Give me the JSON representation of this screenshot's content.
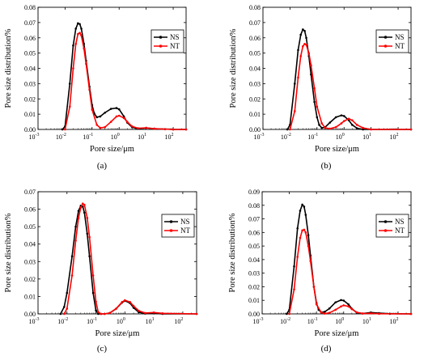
{
  "chart_data": [
    {
      "type": "line",
      "panel_label": "(a)",
      "xlabel": "Pore size/μm",
      "ylabel": "Pore size distribution%",
      "x_scale": "log",
      "xlim": [
        0.001,
        300
      ],
      "x_ticks": [
        {
          "base": "10",
          "exp": "-3"
        },
        {
          "base": "10",
          "exp": "-2"
        },
        {
          "base": "10",
          "exp": "-1"
        },
        {
          "base": "10",
          "exp": "0"
        },
        {
          "base": "10",
          "exp": "1"
        },
        {
          "base": "10",
          "exp": "2"
        }
      ],
      "ylim": [
        0,
        0.08
      ],
      "y_ticks": [
        "0.00",
        "0.01",
        "0.02",
        "0.03",
        "0.04",
        "0.05",
        "0.06",
        "0.07",
        "0.08"
      ],
      "legend_position": "upper-right",
      "series": [
        {
          "name": "NS",
          "color": "#000000",
          "x": [
            0.008,
            0.01,
            0.015,
            0.02,
            0.025,
            0.03,
            0.035,
            0.04,
            0.05,
            0.06,
            0.08,
            0.1,
            0.12,
            0.15,
            0.2,
            0.3,
            0.5,
            0.8,
            1,
            1.5,
            2,
            3,
            5,
            10,
            20,
            50,
            100,
            300
          ],
          "y": [
            0,
            0.002,
            0.03,
            0.055,
            0.066,
            0.0695,
            0.069,
            0.066,
            0.056,
            0.045,
            0.028,
            0.016,
            0.0105,
            0.008,
            0.0085,
            0.011,
            0.0135,
            0.014,
            0.0132,
            0.0085,
            0.0045,
            0.0015,
            0.0005,
            0.001,
            0.0005,
            0.0002,
            0,
            0
          ]
        },
        {
          "name": "NT",
          "color": "#ff0000",
          "x": [
            0.01,
            0.015,
            0.02,
            0.025,
            0.03,
            0.035,
            0.04,
            0.05,
            0.06,
            0.08,
            0.1,
            0.15,
            0.2,
            0.3,
            0.5,
            0.8,
            1,
            1.5,
            2,
            3,
            5,
            10,
            20,
            50,
            100,
            300
          ],
          "y": [
            0,
            0.015,
            0.04,
            0.056,
            0.0625,
            0.0632,
            0.0615,
            0.053,
            0.043,
            0.026,
            0.013,
            0.003,
            0.001,
            0.0015,
            0.005,
            0.0085,
            0.009,
            0.0075,
            0.005,
            0.002,
            0.0008,
            0.001,
            0.0005,
            0.0002,
            0,
            0
          ]
        }
      ]
    },
    {
      "type": "line",
      "panel_label": "(b)",
      "xlabel": "Pore size/μm",
      "ylabel": "Pore size distribution%",
      "x_scale": "log",
      "xlim": [
        0.001,
        300
      ],
      "x_ticks": [
        {
          "base": "10",
          "exp": "-3"
        },
        {
          "base": "10",
          "exp": "-2"
        },
        {
          "base": "10",
          "exp": "-1"
        },
        {
          "base": "10",
          "exp": "0"
        },
        {
          "base": "10",
          "exp": "1"
        },
        {
          "base": "10",
          "exp": "2"
        }
      ],
      "ylim": [
        0,
        0.08
      ],
      "y_ticks": [
        "0.00",
        "0.01",
        "0.02",
        "0.03",
        "0.04",
        "0.05",
        "0.06",
        "0.07",
        "0.08"
      ],
      "legend_position": "upper-right",
      "series": [
        {
          "name": "NS",
          "color": "#000000",
          "x": [
            0.008,
            0.01,
            0.015,
            0.02,
            0.025,
            0.03,
            0.035,
            0.04,
            0.05,
            0.06,
            0.08,
            0.1,
            0.12,
            0.15,
            0.2,
            0.3,
            0.5,
            0.8,
            1,
            1.5,
            2,
            3,
            5,
            300
          ],
          "y": [
            0,
            0.003,
            0.03,
            0.052,
            0.062,
            0.0655,
            0.0645,
            0.06,
            0.048,
            0.036,
            0.018,
            0.008,
            0.003,
            0.001,
            0.0015,
            0.0045,
            0.008,
            0.0092,
            0.0088,
            0.006,
            0.003,
            0.0008,
            0,
            0
          ]
        },
        {
          "name": "NT",
          "color": "#ff0000",
          "x": [
            0.01,
            0.015,
            0.02,
            0.025,
            0.03,
            0.035,
            0.04,
            0.05,
            0.06,
            0.08,
            0.1,
            0.15,
            0.2,
            0.3,
            0.5,
            0.8,
            1,
            1.5,
            2,
            3,
            5,
            10,
            300
          ],
          "y": [
            0,
            0.012,
            0.034,
            0.048,
            0.0545,
            0.056,
            0.0555,
            0.05,
            0.042,
            0.027,
            0.015,
            0.004,
            0.001,
            0.0005,
            0.0015,
            0.004,
            0.0055,
            0.007,
            0.006,
            0.003,
            0.001,
            0,
            0
          ]
        }
      ]
    },
    {
      "type": "line",
      "panel_label": "(c)",
      "xlabel": "Pore size/μm",
      "ylabel": "Pore size distribution%",
      "x_scale": "log",
      "xlim": [
        0.001,
        300
      ],
      "x_ticks": [
        {
          "base": "10",
          "exp": "-3"
        },
        {
          "base": "10",
          "exp": "-2"
        },
        {
          "base": "10",
          "exp": "-1"
        },
        {
          "base": "10",
          "exp": "0"
        },
        {
          "base": "10",
          "exp": "1"
        },
        {
          "base": "10",
          "exp": "2"
        }
      ],
      "ylim": [
        0,
        0.07
      ],
      "y_ticks": [
        "0.00",
        "0.01",
        "0.02",
        "0.03",
        "0.04",
        "0.05",
        "0.06",
        "0.07"
      ],
      "legend_position": "upper-right",
      "series": [
        {
          "name": "NS",
          "color": "#000000",
          "x": [
            0.006,
            0.008,
            0.01,
            0.015,
            0.02,
            0.025,
            0.03,
            0.035,
            0.04,
            0.05,
            0.06,
            0.08,
            0.1,
            0.12,
            0.15,
            0.2,
            0.3,
            0.5,
            0.8,
            1,
            1.5,
            2,
            3,
            5,
            10,
            20,
            300
          ],
          "y": [
            0,
            0.004,
            0.012,
            0.033,
            0.05,
            0.059,
            0.062,
            0.0615,
            0.058,
            0.046,
            0.033,
            0.012,
            0.002,
            0,
            0,
            0,
            0.0005,
            0.003,
            0.0065,
            0.0075,
            0.0062,
            0.0035,
            0.001,
            0.0002,
            0.0003,
            0,
            0
          ]
        },
        {
          "name": "NT",
          "color": "#ff0000",
          "x": [
            0.008,
            0.01,
            0.015,
            0.02,
            0.025,
            0.03,
            0.035,
            0.04,
            0.05,
            0.06,
            0.08,
            0.1,
            0.12,
            0.15,
            0.2,
            0.3,
            0.5,
            0.8,
            1,
            1.5,
            2,
            3,
            5,
            10,
            20,
            300
          ],
          "y": [
            0,
            0.003,
            0.022,
            0.042,
            0.055,
            0.061,
            0.0632,
            0.0625,
            0.055,
            0.044,
            0.022,
            0.007,
            0.001,
            0,
            0,
            0.0005,
            0.003,
            0.0068,
            0.0078,
            0.0068,
            0.0045,
            0.0018,
            0.0005,
            0.0008,
            0.0003,
            0
          ]
        }
      ]
    },
    {
      "type": "line",
      "panel_label": "(d)",
      "xlabel": "Pore size/μm",
      "ylabel": "Pore size distribution%",
      "x_scale": "log",
      "xlim": [
        0.001,
        300
      ],
      "x_ticks": [
        {
          "base": "10",
          "exp": "-3"
        },
        {
          "base": "10",
          "exp": "-2"
        },
        {
          "base": "10",
          "exp": "-1"
        },
        {
          "base": "10",
          "exp": "0"
        },
        {
          "base": "10",
          "exp": "1"
        },
        {
          "base": "10",
          "exp": "2"
        }
      ],
      "ylim": [
        0,
        0.09
      ],
      "y_ticks": [
        "0.00",
        "0.01",
        "0.02",
        "0.03",
        "0.04",
        "0.05",
        "0.06",
        "0.07",
        "0.08",
        "0.09"
      ],
      "legend_position": "upper-right",
      "series": [
        {
          "name": "NS",
          "color": "#000000",
          "x": [
            0.008,
            0.01,
            0.015,
            0.02,
            0.025,
            0.03,
            0.035,
            0.04,
            0.05,
            0.06,
            0.08,
            0.1,
            0.12,
            0.15,
            0.2,
            0.3,
            0.5,
            0.8,
            1,
            1.5,
            2,
            3,
            5,
            10,
            20,
            50,
            300
          ],
          "y": [
            0,
            0.003,
            0.035,
            0.063,
            0.076,
            0.0805,
            0.079,
            0.073,
            0.058,
            0.043,
            0.02,
            0.008,
            0.003,
            0.0012,
            0.0015,
            0.004,
            0.0085,
            0.0102,
            0.0098,
            0.007,
            0.0038,
            0.001,
            0.0003,
            0.001,
            0.0006,
            0.0001,
            0
          ]
        },
        {
          "name": "NT",
          "color": "#ff0000",
          "x": [
            0.01,
            0.015,
            0.02,
            0.025,
            0.03,
            0.035,
            0.04,
            0.05,
            0.06,
            0.08,
            0.1,
            0.15,
            0.2,
            0.3,
            0.5,
            0.8,
            1,
            1.5,
            2,
            3,
            5,
            10,
            20,
            300
          ],
          "y": [
            0,
            0.018,
            0.042,
            0.056,
            0.0615,
            0.062,
            0.06,
            0.05,
            0.039,
            0.02,
            0.007,
            0.001,
            0.0002,
            0.0008,
            0.003,
            0.0055,
            0.0063,
            0.0055,
            0.0035,
            0.0012,
            0.0003,
            0.0004,
            0.0001,
            0
          ]
        }
      ]
    }
  ]
}
